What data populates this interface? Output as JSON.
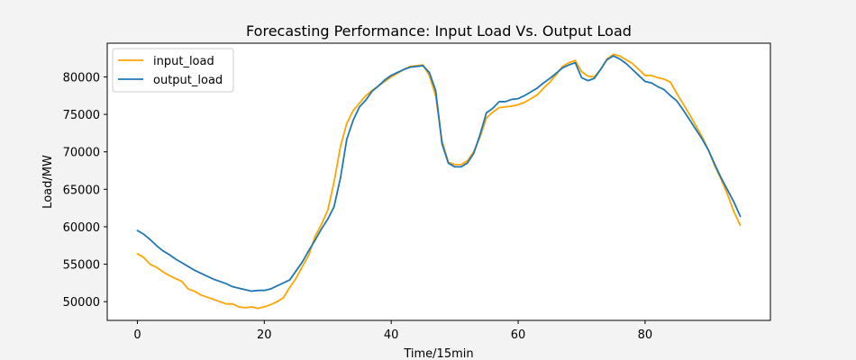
{
  "chart_data": {
    "type": "line",
    "title": "Forecasting Performance: Input Load Vs. Output Load",
    "xlabel": "Time/15min",
    "ylabel": "Load/MW",
    "xlim": [
      -4.75,
      99.75
    ],
    "ylim": [
      47500,
      84500
    ],
    "xticks": [
      0,
      20,
      40,
      60,
      80
    ],
    "yticks": [
      50000,
      55000,
      60000,
      65000,
      70000,
      75000,
      80000
    ],
    "grid": false,
    "legend_position": "top-left",
    "x": [
      0,
      1,
      2,
      3,
      4,
      5,
      6,
      7,
      8,
      9,
      10,
      11,
      12,
      13,
      14,
      15,
      16,
      17,
      18,
      19,
      20,
      21,
      22,
      23,
      24,
      25,
      26,
      27,
      28,
      29,
      30,
      31,
      32,
      33,
      34,
      35,
      36,
      37,
      38,
      39,
      40,
      41,
      42,
      43,
      44,
      45,
      46,
      47,
      48,
      49,
      50,
      51,
      52,
      53,
      54,
      55,
      56,
      57,
      58,
      59,
      60,
      61,
      62,
      63,
      64,
      65,
      66,
      67,
      68,
      69,
      70,
      71,
      72,
      73,
      74,
      75,
      76,
      77,
      78,
      79,
      80,
      81,
      82,
      83,
      84,
      85,
      86,
      87,
      88,
      89,
      90,
      91,
      92,
      93,
      94,
      95
    ],
    "series": [
      {
        "name": "input_load",
        "color": "#ffa500",
        "values": [
          56400,
          55900,
          55000,
          54600,
          54000,
          53500,
          53100,
          52700,
          51700,
          51400,
          50900,
          50600,
          50300,
          50000,
          49700,
          49700,
          49300,
          49200,
          49300,
          49100,
          49300,
          49600,
          50000,
          50500,
          51900,
          53100,
          54700,
          56200,
          58700,
          60300,
          62200,
          66000,
          70700,
          73800,
          75500,
          76500,
          77500,
          78200,
          78800,
          79400,
          80000,
          80500,
          81000,
          81400,
          81500,
          81600,
          80200,
          77500,
          71500,
          68600,
          68300,
          68300,
          68800,
          70000,
          72000,
          74500,
          75300,
          75900,
          76000,
          76100,
          76300,
          76600,
          77100,
          77600,
          78500,
          79300,
          80300,
          81400,
          81900,
          82200,
          80700,
          80100,
          80000,
          81000,
          82400,
          83000,
          82800,
          82300,
          81800,
          81000,
          80200,
          80200,
          79900,
          79700,
          79300,
          77800,
          76400,
          75000,
          73500,
          72000,
          70200,
          68100,
          66300,
          64300,
          62000,
          60200
        ]
      },
      {
        "name": "output_load",
        "color": "#1f77b4",
        "values": [
          59500,
          59000,
          58300,
          57500,
          56800,
          56300,
          55700,
          55200,
          54700,
          54200,
          53800,
          53400,
          53000,
          52700,
          52400,
          52000,
          51800,
          51600,
          51400,
          51500,
          51500,
          51700,
          52100,
          52500,
          52900,
          54100,
          55300,
          56800,
          58200,
          59700,
          61000,
          62700,
          66500,
          71700,
          74200,
          76000,
          76900,
          78100,
          78800,
          79600,
          80200,
          80600,
          81000,
          81300,
          81400,
          81500,
          80600,
          78200,
          71100,
          68500,
          68000,
          68000,
          68500,
          69800,
          72300,
          75200,
          75800,
          76700,
          76700,
          77000,
          77100,
          77500,
          78000,
          78500,
          79200,
          79800,
          80500,
          81200,
          81600,
          81900,
          79900,
          79500,
          79800,
          81000,
          82300,
          82800,
          82400,
          81800,
          81000,
          80200,
          79400,
          79200,
          78700,
          78300,
          77500,
          76800,
          75600,
          74300,
          73000,
          71700,
          70200,
          68300,
          66500,
          64900,
          63300,
          61400
        ]
      }
    ]
  }
}
